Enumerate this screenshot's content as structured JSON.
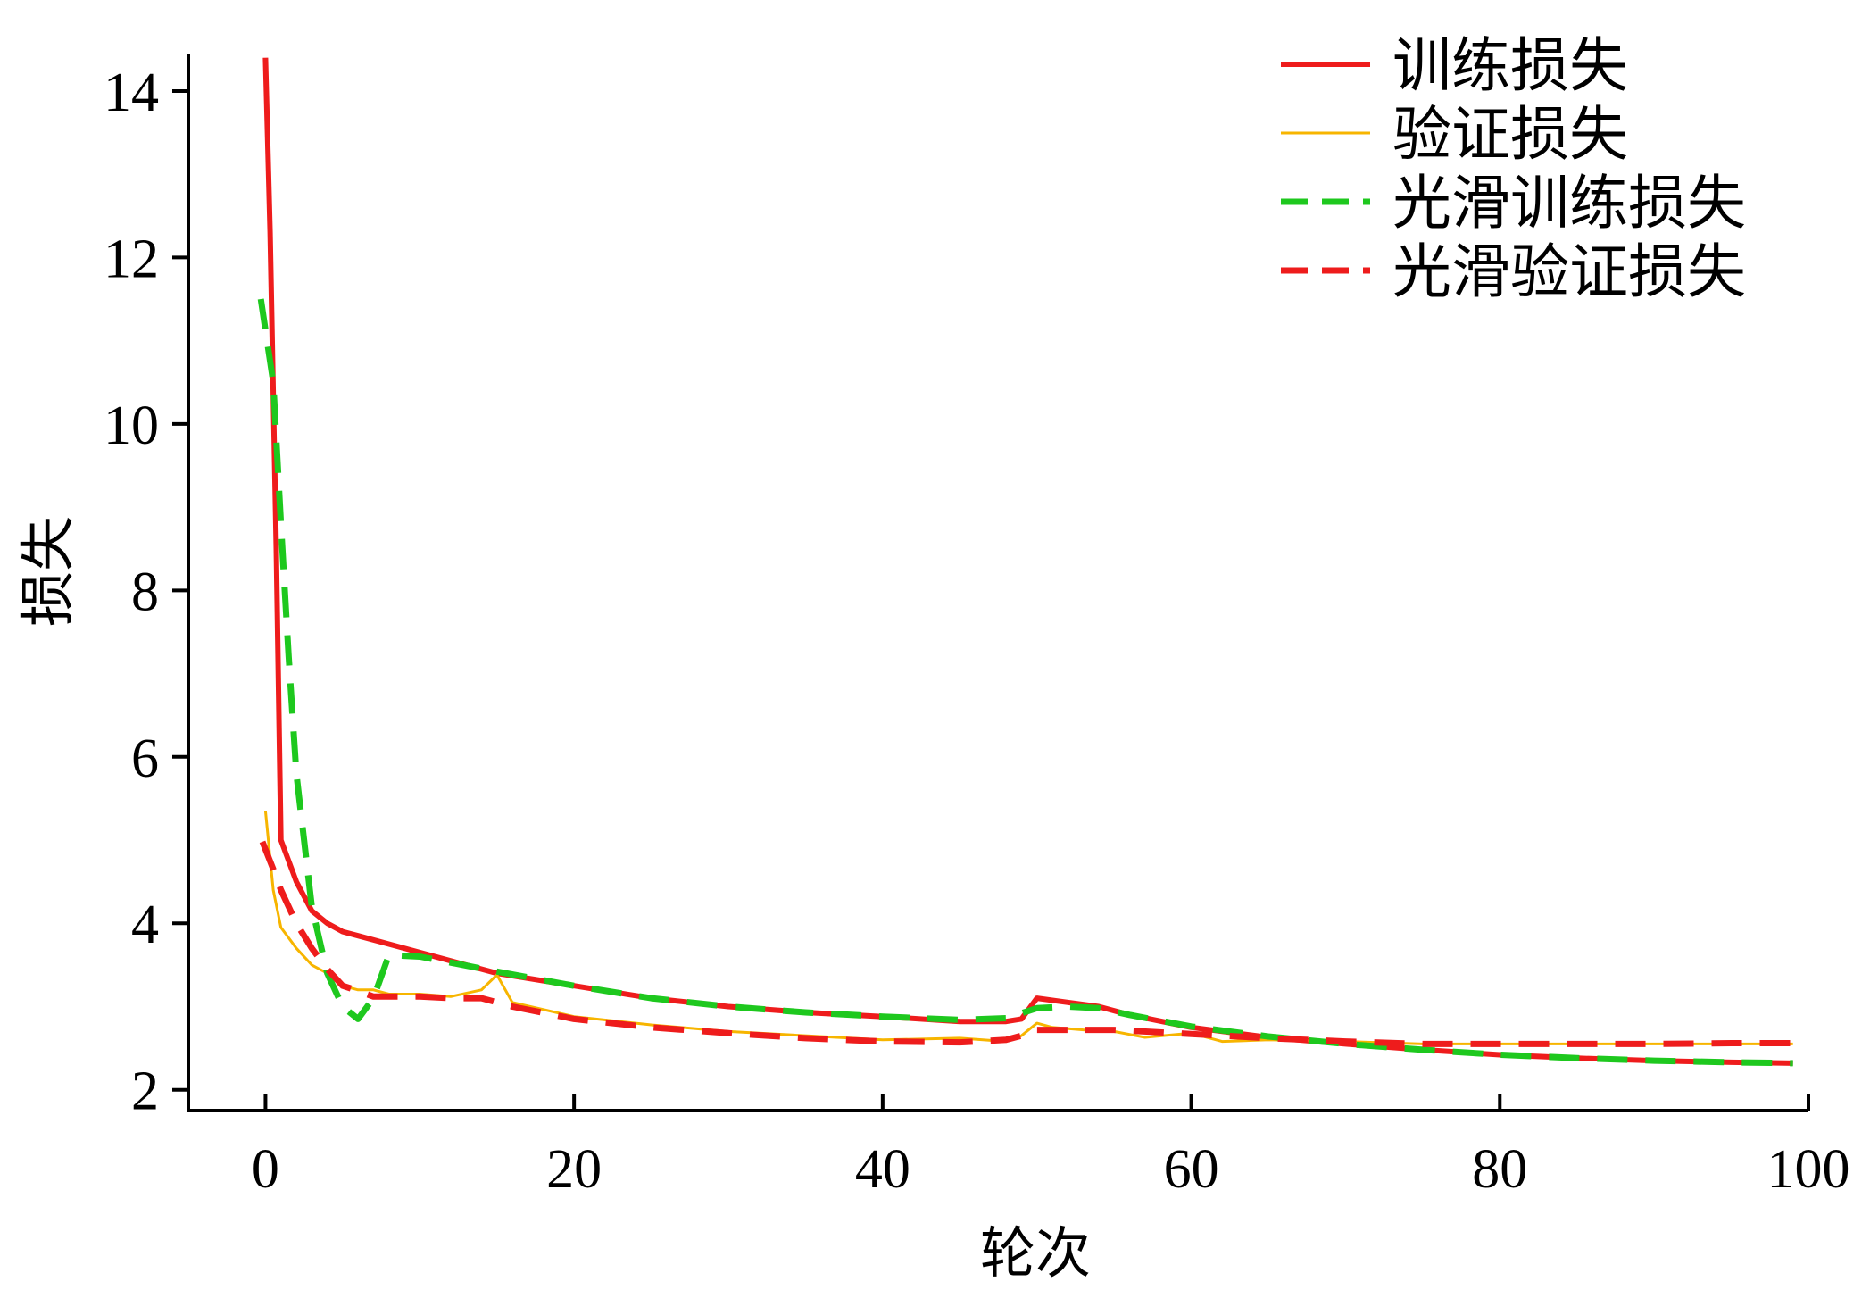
{
  "chart_data": {
    "type": "line",
    "xlabel": "轮次",
    "ylabel": "损失",
    "xlim": [
      -5,
      100
    ],
    "ylim": [
      1.75,
      14.45
    ],
    "xticks": [
      0,
      20,
      40,
      60,
      80,
      100
    ],
    "yticks": [
      2,
      4,
      6,
      8,
      10,
      12,
      14
    ],
    "grid": false,
    "legend_position": "top-right",
    "series": [
      {
        "name": "训练损失",
        "color": "#ee1c1c",
        "style": "solid",
        "width": 6,
        "x": [
          0,
          0.3,
          0.7,
          1,
          2,
          3,
          4,
          5,
          6,
          8,
          10,
          15,
          20,
          25,
          30,
          35,
          40,
          45,
          48,
          49,
          50,
          52,
          54,
          56,
          60,
          65,
          70,
          75,
          80,
          85,
          90,
          95,
          99
        ],
        "y": [
          14.4,
          12.3,
          8.5,
          5.0,
          4.5,
          4.15,
          4.0,
          3.9,
          3.85,
          3.75,
          3.65,
          3.4,
          3.25,
          3.1,
          3.0,
          2.93,
          2.88,
          2.82,
          2.82,
          2.85,
          3.1,
          3.05,
          3.0,
          2.9,
          2.75,
          2.63,
          2.55,
          2.48,
          2.42,
          2.38,
          2.35,
          2.33,
          2.32
        ]
      },
      {
        "name": "验证损失",
        "color": "#f7b500",
        "style": "solid",
        "width": 3,
        "x": [
          0,
          0.5,
          1,
          2,
          3,
          4,
          5,
          6,
          7,
          8,
          10,
          12,
          14,
          15,
          16,
          20,
          25,
          30,
          35,
          40,
          45,
          48,
          49,
          50,
          51,
          53,
          55,
          57,
          60,
          62,
          65,
          70,
          75,
          80,
          85,
          90,
          95,
          99
        ],
        "y": [
          5.35,
          4.4,
          3.95,
          3.7,
          3.5,
          3.4,
          3.25,
          3.2,
          3.2,
          3.15,
          3.15,
          3.12,
          3.2,
          3.38,
          3.05,
          2.88,
          2.78,
          2.7,
          2.65,
          2.6,
          2.62,
          2.58,
          2.65,
          2.8,
          2.75,
          2.72,
          2.7,
          2.63,
          2.68,
          2.58,
          2.6,
          2.58,
          2.55,
          2.55,
          2.55,
          2.55,
          2.55,
          2.55
        ]
      },
      {
        "name": "光滑训练损失",
        "color": "#1ec81e",
        "style": "dashed",
        "width": 7,
        "x": [
          -0.3,
          0.5,
          1,
          1.5,
          2,
          3,
          4,
          5,
          6,
          7,
          8,
          10,
          15,
          20,
          25,
          30,
          35,
          40,
          45,
          48,
          49,
          50,
          52,
          54,
          56,
          60,
          65,
          70,
          75,
          80,
          85,
          90,
          95,
          99
        ],
        "y": [
          11.5,
          10.5,
          8.8,
          7.2,
          5.8,
          4.2,
          3.4,
          3.0,
          2.85,
          3.1,
          3.62,
          3.6,
          3.42,
          3.25,
          3.1,
          3.0,
          2.93,
          2.88,
          2.84,
          2.86,
          2.92,
          2.98,
          3.0,
          2.98,
          2.9,
          2.76,
          2.64,
          2.55,
          2.48,
          2.42,
          2.38,
          2.35,
          2.33,
          2.32
        ]
      },
      {
        "name": "光滑验证损失",
        "color": "#ee1c1c",
        "style": "dashed",
        "width": 7,
        "x": [
          -0.2,
          0.5,
          1,
          2,
          3,
          4,
          5,
          5.5,
          7,
          8,
          10,
          12,
          14,
          15,
          16,
          20,
          25,
          30,
          35,
          40,
          45,
          48,
          49,
          50,
          55,
          60,
          65,
          70,
          75,
          80,
          85,
          90,
          95,
          99
        ],
        "y": [
          4.98,
          4.65,
          4.4,
          4.0,
          3.7,
          3.45,
          3.25,
          3.22,
          3.12,
          3.12,
          3.12,
          3.1,
          3.1,
          3.05,
          3.0,
          2.85,
          2.75,
          2.68,
          2.62,
          2.58,
          2.57,
          2.6,
          2.65,
          2.72,
          2.72,
          2.67,
          2.62,
          2.58,
          2.55,
          2.55,
          2.55,
          2.55,
          2.56,
          2.56
        ]
      }
    ]
  }
}
